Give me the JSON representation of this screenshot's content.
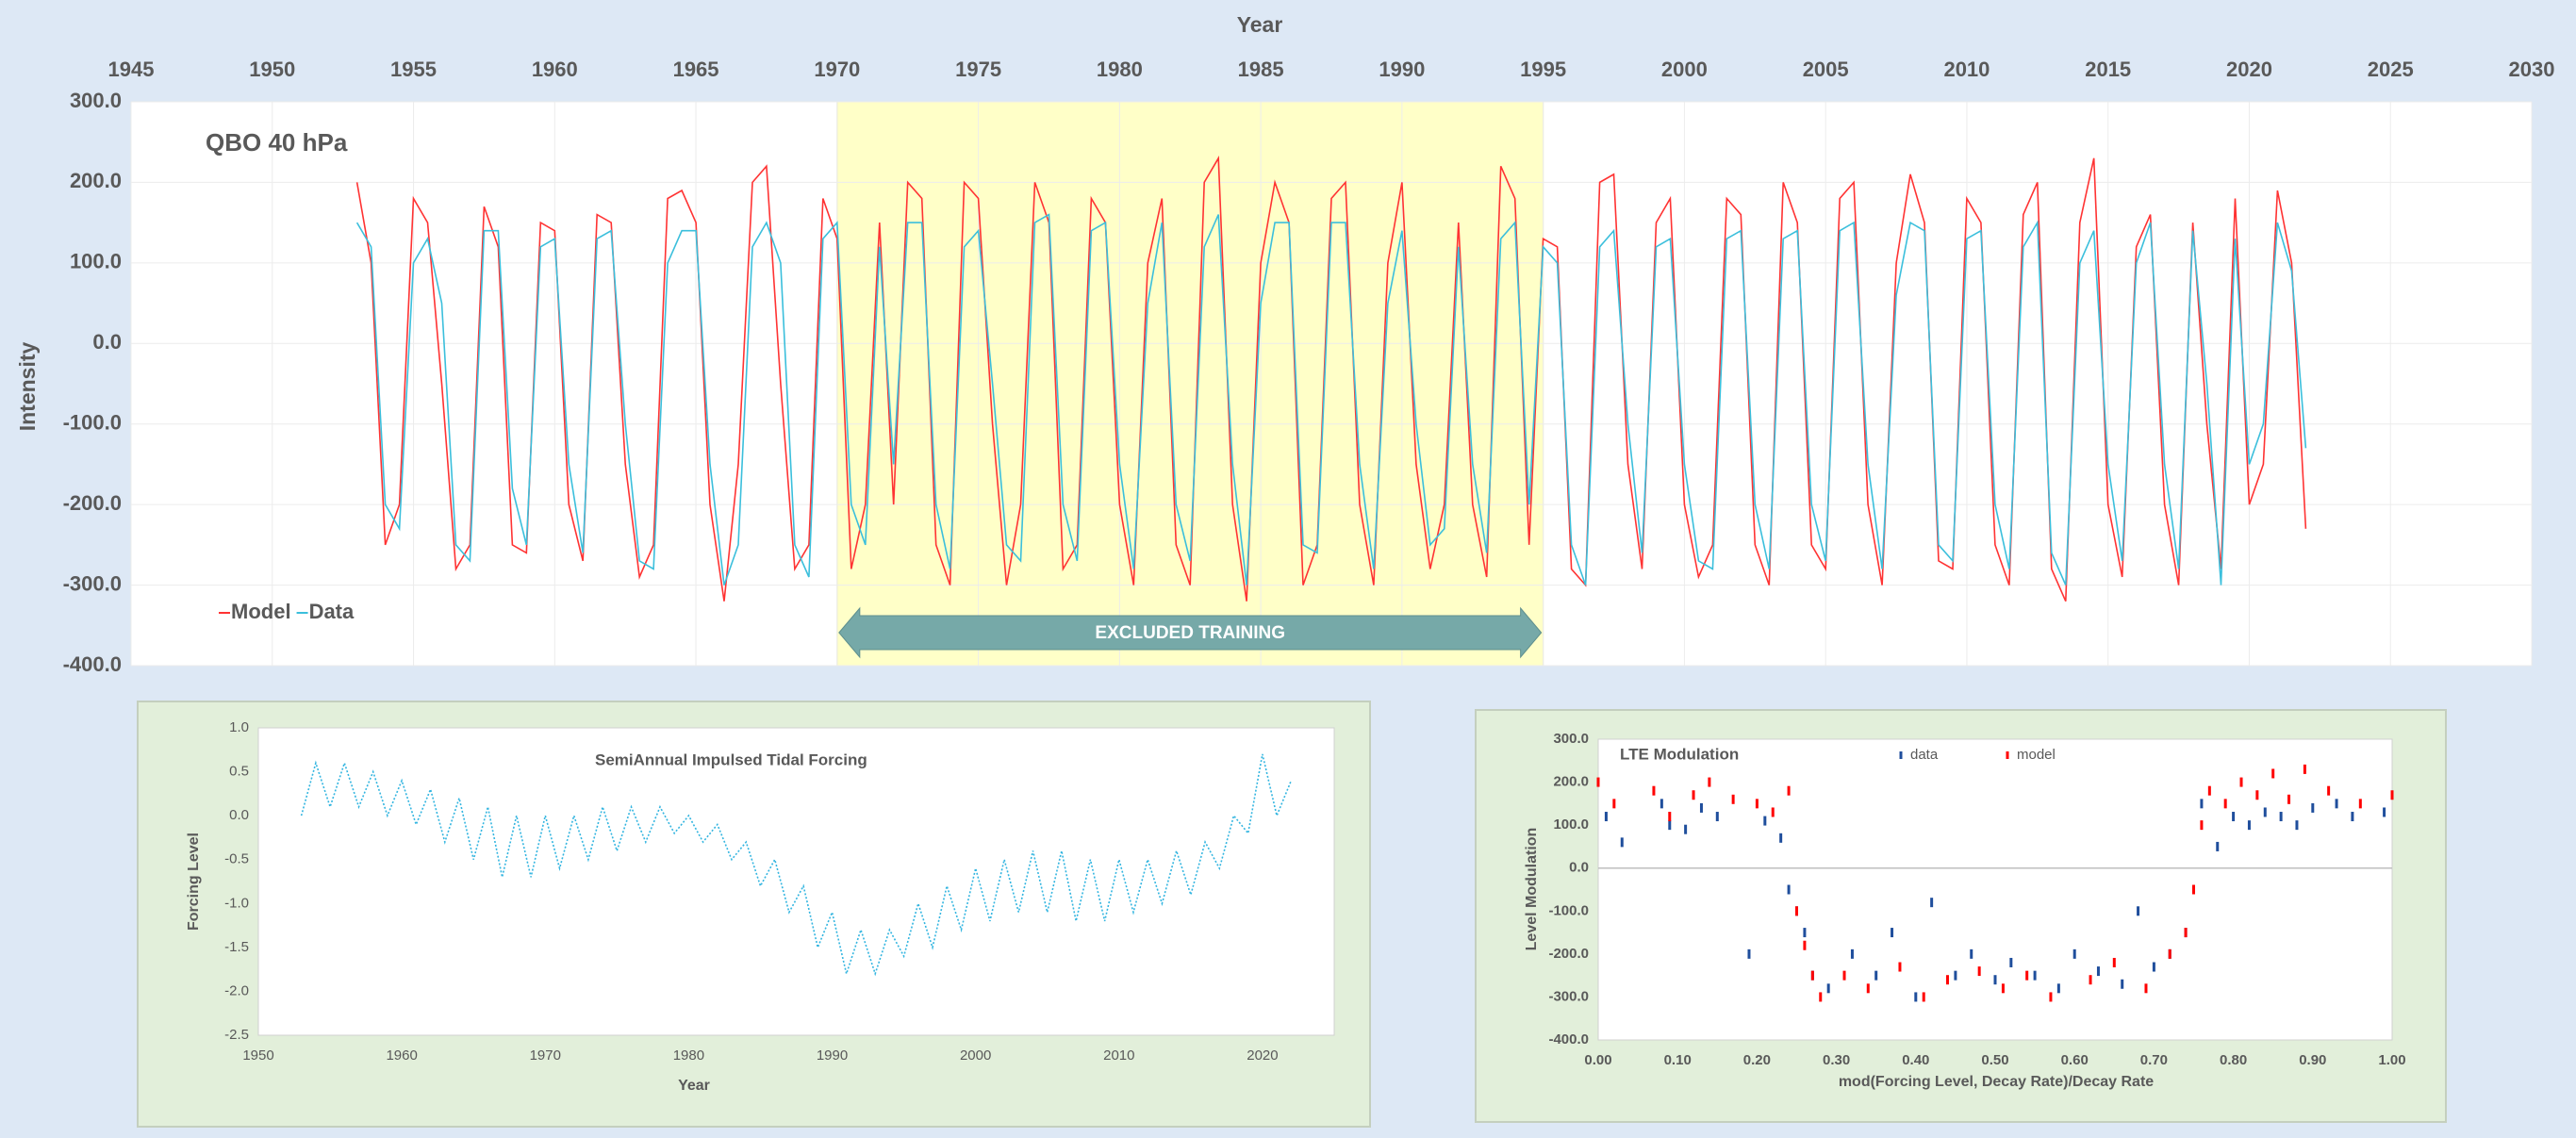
{
  "chart_data": [
    {
      "type": "line",
      "title": "QBO 40 hPa",
      "xlabel": "Year",
      "ylabel": "Intensity",
      "x": [
        1953,
        1953.5,
        1954,
        1954.5,
        1955,
        1955.5,
        1956,
        1956.5,
        1957,
        1957.5,
        1958,
        1958.5,
        1959,
        1959.5,
        1960,
        1960.5,
        1961,
        1961.5,
        1962,
        1962.5,
        1963,
        1963.5,
        1964,
        1964.5,
        1965,
        1965.5,
        1966,
        1966.5,
        1967,
        1967.5,
        1968,
        1968.5,
        1969,
        1969.5,
        1970,
        1970.5,
        1971,
        1971.5,
        1972,
        1972.5,
        1973,
        1973.5,
        1974,
        1974.5,
        1975,
        1975.5,
        1976,
        1976.5,
        1977,
        1977.5,
        1978,
        1978.5,
        1979,
        1979.5,
        1980,
        1980.5,
        1981,
        1981.5,
        1982,
        1982.5,
        1983,
        1983.5,
        1984,
        1984.5,
        1985,
        1985.5,
        1986,
        1986.5,
        1987,
        1987.5,
        1988,
        1988.5,
        1989,
        1989.5,
        1990,
        1990.5,
        1991,
        1991.5,
        1992,
        1992.5,
        1993,
        1993.5,
        1994,
        1994.5,
        1995,
        1995.5,
        1996,
        1996.5,
        1997,
        1997.5,
        1998,
        1998.5,
        1999,
        1999.5,
        2000,
        2000.5,
        2001,
        2001.5,
        2002,
        2002.5,
        2003,
        2003.5,
        2004,
        2004.5,
        2005,
        2005.5,
        2006,
        2006.5,
        2007,
        2007.5,
        2008,
        2008.5,
        2009,
        2009.5,
        2010,
        2010.5,
        2011,
        2011.5,
        2012,
        2012.5,
        2013,
        2013.5,
        2014,
        2014.5,
        2015,
        2015.5,
        2016,
        2016.5,
        2017,
        2017.5,
        2018,
        2018.5,
        2019,
        2019.5,
        2020,
        2020.5,
        2021,
        2021.5,
        2022
      ],
      "series": [
        {
          "name": "Model",
          "color": "#ff3333",
          "values": [
            200,
            100,
            -250,
            -200,
            180,
            150,
            -50,
            -280,
            -250,
            170,
            120,
            -250,
            -260,
            150,
            140,
            -200,
            -270,
            160,
            150,
            -150,
            -290,
            -250,
            180,
            190,
            150,
            -200,
            -320,
            -150,
            200,
            220,
            -50,
            -280,
            -250,
            180,
            130,
            -280,
            -200,
            150,
            -200,
            200,
            180,
            -250,
            -300,
            200,
            180,
            -100,
            -300,
            -200,
            200,
            150,
            -280,
            -250,
            180,
            150,
            -200,
            -300,
            100,
            180,
            -250,
            -300,
            200,
            230,
            -200,
            -320,
            100,
            200,
            150,
            -300,
            -250,
            180,
            200,
            -200,
            -300,
            100,
            200,
            -150,
            -280,
            -200,
            150,
            -200,
            -290,
            220,
            180,
            -250,
            130,
            120,
            -280,
            -300,
            200,
            210,
            -150,
            -280,
            150,
            180,
            -200,
            -290,
            -250,
            180,
            160,
            -250,
            -300,
            200,
            150,
            -250,
            -280,
            180,
            200,
            -200,
            -300,
            100,
            210,
            150,
            -270,
            -280,
            180,
            150,
            -250,
            -300,
            160,
            200,
            -280,
            -320,
            150,
            230,
            -200,
            -290,
            120,
            160,
            -200,
            -300,
            150,
            -100,
            -280,
            180,
            -200,
            -150,
            190,
            100,
            -230
          ]
        },
        {
          "name": "Data",
          "color": "#3bbfdc",
          "values": [
            150,
            120,
            -200,
            -230,
            100,
            130,
            50,
            -250,
            -270,
            140,
            140,
            -180,
            -250,
            120,
            130,
            -150,
            -260,
            130,
            140,
            -100,
            -270,
            -280,
            100,
            140,
            140,
            -150,
            -300,
            -250,
            120,
            150,
            100,
            -250,
            -290,
            130,
            150,
            -200,
            -250,
            120,
            -150,
            150,
            150,
            -200,
            -280,
            120,
            140,
            -50,
            -250,
            -270,
            150,
            160,
            -200,
            -270,
            140,
            150,
            -150,
            -280,
            50,
            150,
            -200,
            -270,
            120,
            160,
            -150,
            -300,
            50,
            150,
            150,
            -250,
            -260,
            150,
            150,
            -150,
            -280,
            50,
            140,
            -100,
            -250,
            -230,
            120,
            -150,
            -260,
            130,
            150,
            -200,
            120,
            100,
            -250,
            -300,
            120,
            140,
            -100,
            -260,
            120,
            130,
            -150,
            -270,
            -280,
            130,
            140,
            -200,
            -280,
            130,
            140,
            -200,
            -270,
            140,
            150,
            -150,
            -280,
            60,
            150,
            140,
            -250,
            -270,
            130,
            140,
            -200,
            -280,
            120,
            150,
            -260,
            -300,
            100,
            140,
            -150,
            -270,
            100,
            150,
            -150,
            -280,
            140,
            -50,
            -300,
            130,
            -150,
            -100,
            150,
            90,
            -130
          ]
        }
      ],
      "xlim": [
        1945,
        2030
      ],
      "xticks": [
        1945,
        1950,
        1955,
        1960,
        1965,
        1970,
        1975,
        1980,
        1985,
        1990,
        1995,
        2000,
        2005,
        2010,
        2015,
        2020,
        2025,
        2030
      ],
      "ylim": [
        -400,
        300
      ],
      "yticks": [
        {
          "value": -400,
          "label": "-400.0"
        },
        {
          "value": -300,
          "label": "-300.0"
        },
        {
          "value": -200,
          "label": "-200.0"
        },
        {
          "value": -100,
          "label": "-100.0"
        },
        {
          "value": 0,
          "label": "0.0"
        },
        {
          "value": 100,
          "label": "100.0"
        },
        {
          "value": 200,
          "label": "200.0"
        },
        {
          "value": 300,
          "label": "300.0"
        }
      ],
      "grid": true,
      "legend": "lower left",
      "shaded_range": {
        "x": [
          1970,
          1995
        ],
        "color": "#ffffc8",
        "label": "EXCLUDED TRAINING"
      }
    },
    {
      "type": "line",
      "title": "SemiAnnual Impulsed Tidal Forcing",
      "xlabel": "Year",
      "ylabel": "Forcing Level",
      "x": [
        1953,
        1954,
        1955,
        1956,
        1957,
        1958,
        1959,
        1960,
        1961,
        1962,
        1963,
        1964,
        1965,
        1966,
        1967,
        1968,
        1969,
        1970,
        1971,
        1972,
        1973,
        1974,
        1975,
        1976,
        1977,
        1978,
        1979,
        1980,
        1981,
        1982,
        1983,
        1984,
        1985,
        1986,
        1987,
        1988,
        1989,
        1990,
        1991,
        1992,
        1993,
        1994,
        1995,
        1996,
        1997,
        1998,
        1999,
        2000,
        2001,
        2002,
        2003,
        2004,
        2005,
        2006,
        2007,
        2008,
        2009,
        2010,
        2011,
        2012,
        2013,
        2014,
        2015,
        2016,
        2017,
        2018,
        2019,
        2020,
        2021,
        2022
      ],
      "values": [
        0.0,
        0.6,
        0.1,
        0.6,
        0.1,
        0.5,
        0.0,
        0.4,
        -0.1,
        0.3,
        -0.3,
        0.2,
        -0.5,
        0.1,
        -0.7,
        0.0,
        -0.7,
        0.0,
        -0.6,
        0.0,
        -0.5,
        0.1,
        -0.4,
        0.1,
        -0.3,
        0.1,
        -0.2,
        0.0,
        -0.3,
        -0.1,
        -0.5,
        -0.3,
        -0.8,
        -0.5,
        -1.1,
        -0.8,
        -1.5,
        -1.1,
        -1.8,
        -1.3,
        -1.8,
        -1.3,
        -1.6,
        -1.0,
        -1.5,
        -0.8,
        -1.3,
        -0.6,
        -1.2,
        -0.5,
        -1.1,
        -0.4,
        -1.1,
        -0.4,
        -1.2,
        -0.5,
        -1.2,
        -0.5,
        -1.1,
        -0.5,
        -1.0,
        -0.4,
        -0.9,
        -0.3,
        -0.6,
        0.0,
        -0.2,
        0.7,
        0.0,
        0.4
      ],
      "color": "#33b5e0",
      "line_style": "dotted",
      "xlim": [
        1950,
        2025
      ],
      "xticks": [
        1950,
        1960,
        1970,
        1980,
        1990,
        2000,
        2010,
        2020
      ],
      "ylim": [
        -2.5,
        1
      ],
      "yticks": [
        {
          "value": -2.5,
          "label": "-2.5"
        },
        {
          "value": -2,
          "label": "-2.0"
        },
        -1.5,
        {
          "value": -1,
          "label": "-1.0"
        },
        -0.5,
        {
          "value": 0,
          "label": "0.0"
        },
        0.5,
        {
          "value": 1,
          "label": "1.0"
        }
      ],
      "grid": false
    },
    {
      "type": "scatter",
      "title": "LTE Modulation",
      "xlabel": "mod(Forcing Level, Decay Rate)/Decay Rate",
      "ylabel": "Level Modulation",
      "series": [
        {
          "name": "data",
          "color": "#1f4e9c",
          "x": [
            0.01,
            0.03,
            0.08,
            0.09,
            0.11,
            0.13,
            0.15,
            0.19,
            0.21,
            0.23,
            0.24,
            0.25,
            0.26,
            0.27,
            0.29,
            0.32,
            0.35,
            0.37,
            0.4,
            0.42,
            0.45,
            0.47,
            0.5,
            0.52,
            0.55,
            0.58,
            0.6,
            0.63,
            0.66,
            0.68,
            0.7,
            0.72,
            0.74,
            0.75,
            0.76,
            0.78,
            0.8,
            0.82,
            0.84,
            0.86,
            0.88,
            0.9,
            0.93,
            0.95,
            0.99
          ],
          "values": [
            120,
            60,
            150,
            100,
            90,
            140,
            120,
            -200,
            110,
            70,
            -50,
            -100,
            -150,
            -250,
            -280,
            -200,
            -250,
            -150,
            -300,
            -80,
            -250,
            -200,
            -260,
            -220,
            -250,
            -280,
            -200,
            -240,
            -270,
            -100,
            -230,
            -200,
            -150,
            -50,
            150,
            50,
            120,
            100,
            130,
            120,
            100,
            140,
            150,
            120,
            130
          ]
        },
        {
          "name": "model",
          "color": "#ff0000",
          "x": [
            0.0,
            0.02,
            0.07,
            0.09,
            0.12,
            0.14,
            0.17,
            0.2,
            0.22,
            0.24,
            0.25,
            0.26,
            0.27,
            0.28,
            0.31,
            0.34,
            0.38,
            0.41,
            0.44,
            0.48,
            0.51,
            0.54,
            0.57,
            0.62,
            0.65,
            0.69,
            0.72,
            0.74,
            0.75,
            0.76,
            0.77,
            0.79,
            0.81,
            0.83,
            0.85,
            0.87,
            0.89,
            0.92,
            0.96,
            1.0
          ],
          "values": [
            200,
            150,
            180,
            120,
            170,
            200,
            160,
            150,
            130,
            180,
            -100,
            -180,
            -250,
            -300,
            -250,
            -280,
            -230,
            -300,
            -260,
            -240,
            -280,
            -250,
            -300,
            -260,
            -220,
            -280,
            -200,
            -150,
            -50,
            100,
            180,
            150,
            200,
            170,
            220,
            160,
            230,
            180,
            150,
            170
          ]
        }
      ],
      "xlim": [
        0,
        1
      ],
      "xticks": [
        {
          "value": 0,
          "label": "0.00"
        },
        {
          "value": 0.1,
          "label": "0.10"
        },
        {
          "value": 0.2,
          "label": "0.20"
        },
        {
          "value": 0.3,
          "label": "0.30"
        },
        {
          "value": 0.4,
          "label": "0.40"
        },
        {
          "value": 0.5,
          "label": "0.50"
        },
        {
          "value": 0.6,
          "label": "0.60"
        },
        {
          "value": 0.7,
          "label": "0.70"
        },
        {
          "value": 0.8,
          "label": "0.80"
        },
        {
          "value": 0.9,
          "label": "0.90"
        },
        {
          "value": 1,
          "label": "1.00"
        }
      ],
      "ylim": [
        -400,
        300
      ],
      "yticks": [
        {
          "value": -400,
          "label": "-400.0"
        },
        {
          "value": -300,
          "label": "-300.0"
        },
        {
          "value": -200,
          "label": "-200.0"
        },
        {
          "value": -100,
          "label": "-100.0"
        },
        {
          "value": 0,
          "label": "0.0"
        },
        {
          "value": 100,
          "label": "100.0"
        },
        {
          "value": 200,
          "label": "200.0"
        },
        {
          "value": 300,
          "label": "300.0"
        }
      ],
      "grid": false,
      "legend": "top"
    }
  ]
}
